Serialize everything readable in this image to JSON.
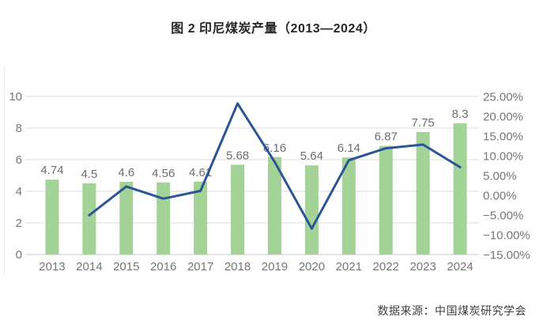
{
  "title": "图 2 印尼煤炭产量（2013—2024）",
  "source": "数据来源：中国煤炭研究学会",
  "colors": {
    "bar": "#A4D398",
    "line": "#2B5597",
    "grid": "#DBDBDB",
    "axis_line": "#C9C9C9",
    "frame": "#ECECEC",
    "tick_text": "#767676",
    "data_label_text": "#6E6E6E",
    "title_text": "#262626",
    "source_text": "#3F3F3F",
    "background": "#FFFFFF"
  },
  "chart_data": {
    "type": "bar",
    "subtype": "combo bar+line, dual value axes, no legend",
    "title": "图 2 印尼煤炭产量（2013—2024）",
    "categories": [
      "2013",
      "2014",
      "2015",
      "2016",
      "2017",
      "2018",
      "2019",
      "2020",
      "2021",
      "2022",
      "2023",
      "2024"
    ],
    "series": [
      {
        "name": "bars (left axis, production)",
        "type": "bar",
        "axis": "left",
        "values": [
          4.74,
          4.5,
          4.6,
          4.56,
          4.61,
          5.68,
          6.16,
          5.64,
          6.14,
          6.87,
          7.75,
          8.3
        ],
        "data_labels": [
          "4.74",
          "4.5",
          "4.6",
          "4.56",
          "4.61",
          "5.68",
          "6.16",
          "5.64",
          "6.14",
          "6.87",
          "7.75",
          "8.3"
        ]
      },
      {
        "name": "line (right axis, year-on-year growth %)",
        "type": "line",
        "axis": "right",
        "x_start_index": 1,
        "values": [
          -5.06,
          2.22,
          -0.87,
          1.1,
          23.21,
          8.45,
          -8.44,
          8.87,
          11.89,
          12.81,
          7.1
        ]
      }
    ],
    "left_axis": {
      "min": 0,
      "max": 10,
      "tick_labels": [
        "0",
        "2",
        "4",
        "6",
        "8",
        "10"
      ]
    },
    "right_axis": {
      "min": -15,
      "max": 25,
      "tick_labels": [
        "25.00%",
        "20.00%",
        "15.00%",
        "10.00%",
        "5.00%",
        "0.00%",
        "−5.00%",
        "−10.00%",
        "−15.00%"
      ]
    },
    "grid": true,
    "legend": "none",
    "xlabel": "",
    "ylabel": ""
  }
}
